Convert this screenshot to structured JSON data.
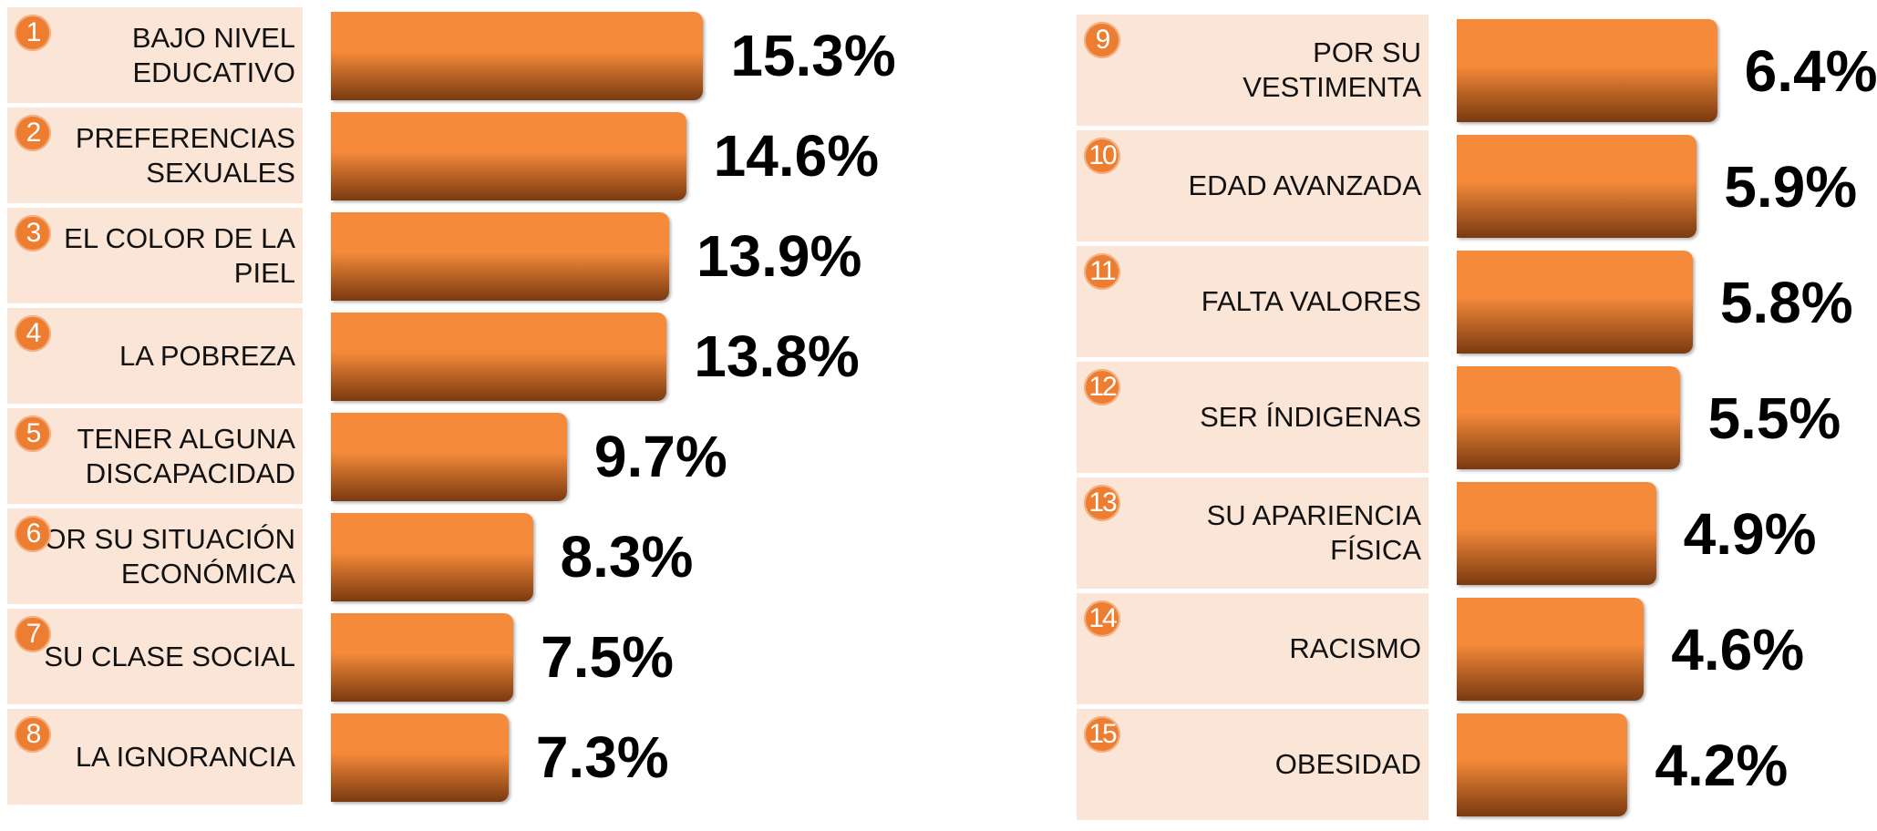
{
  "chart_data": [
    {
      "type": "bar",
      "color": "#f58a3a",
      "xlim": [
        0,
        16
      ],
      "ranks": [
        1,
        2,
        3,
        4,
        5,
        6,
        7,
        8
      ],
      "categories": [
        "BAJO NIVEL EDUCATIVO",
        "PREFERENCIAS SEXUALES",
        "EL COLOR DE LA PIEL",
        "LA POBREZA",
        "TENER ALGUNA DISCAPACIDAD",
        "POR SU SITUACIÓN ECONÓMICA",
        "SU CLASE SOCIAL",
        "LA IGNORANCIA"
      ],
      "values": [
        15.3,
        14.6,
        13.9,
        13.8,
        9.7,
        8.3,
        7.5,
        7.3
      ],
      "value_labels": [
        "15.3%",
        "14.6%",
        "13.9%",
        "13.8%",
        "9.7%",
        "8.3%",
        "7.5%",
        "7.3%"
      ]
    },
    {
      "type": "bar",
      "color": "#f58a3a",
      "xlim": [
        0,
        8
      ],
      "ranks": [
        9,
        10,
        11,
        12,
        13,
        14,
        15
      ],
      "categories": [
        "POR SU VESTIMENTA",
        "EDAD AVANZADA",
        "FALTA VALORES",
        "SER ÍNDIGENAS",
        "SU APARIENCIA FÍSICA",
        "RACISMO",
        "OBESIDAD"
      ],
      "values": [
        6.4,
        5.9,
        5.8,
        5.5,
        4.9,
        4.6,
        4.2
      ],
      "value_labels": [
        "6.4%",
        "5.9%",
        "5.8%",
        "5.5%",
        "4.9%",
        "4.6%",
        "4.2%"
      ]
    }
  ]
}
